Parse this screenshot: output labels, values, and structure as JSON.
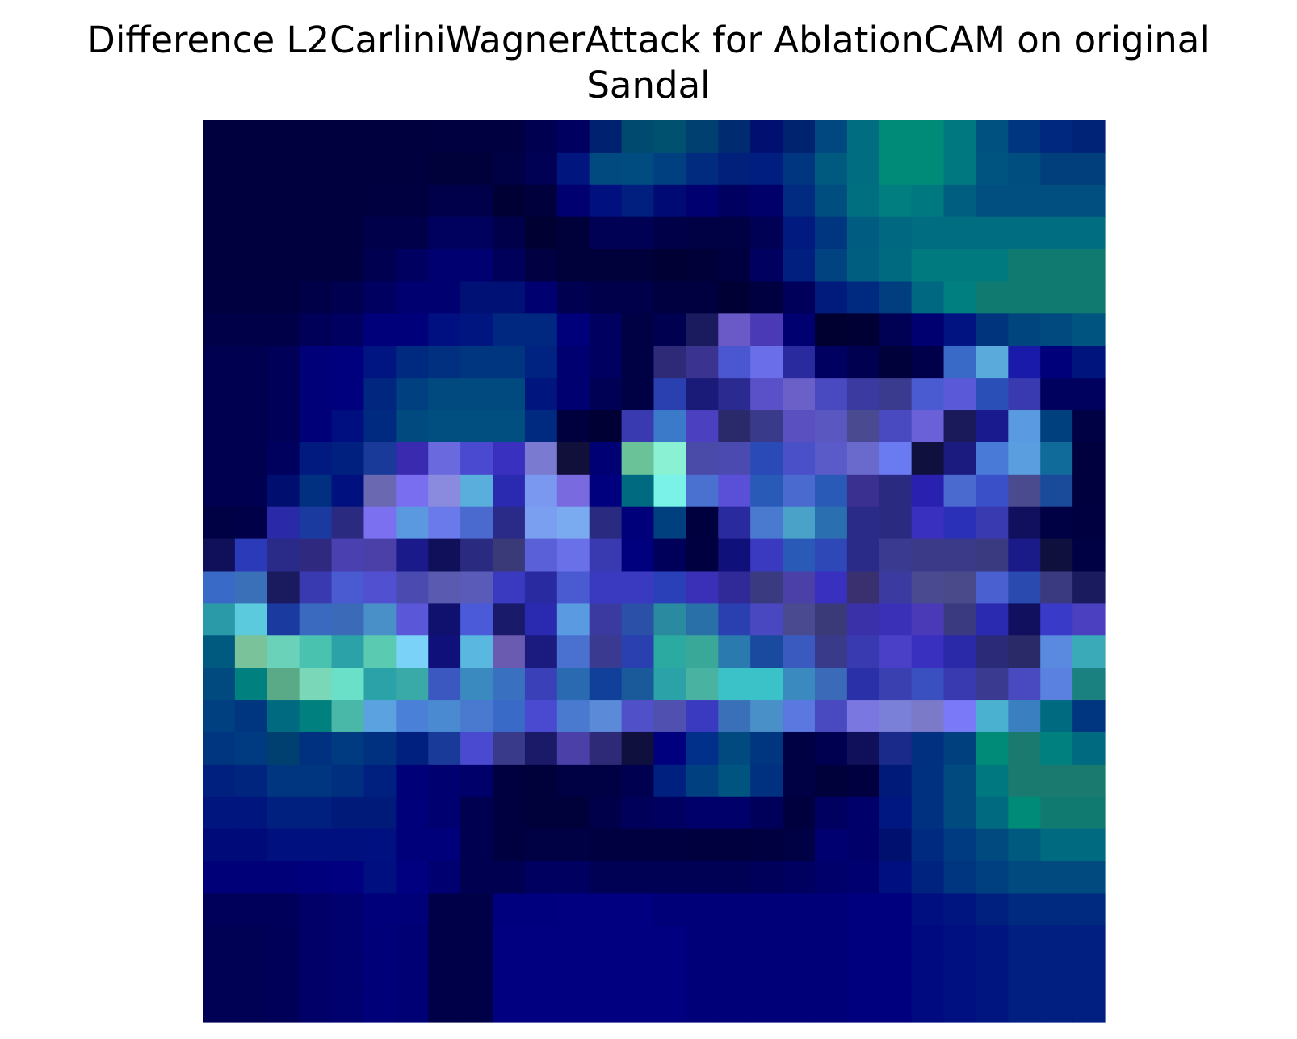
{
  "chart_data": {
    "type": "heatmap",
    "title_line1": "Difference L2CarliniWagnerAttack for AblationCAM on original",
    "title_line2": "Sandal",
    "rows": 28,
    "cols": 28,
    "colormap": "winter-ocean-blend",
    "axes_visible": false,
    "pixels": [
      [
        "#00003f",
        "#00003f",
        "#00003f",
        "#00003f",
        "#00003f",
        "#00003f",
        "#00003f",
        "#000040",
        "#000040",
        "#000040",
        "#000050",
        "#000060",
        "#002070",
        "#004a70",
        "#005070",
        "#004070",
        "#002b70",
        "#000f70",
        "#002370",
        "#00487f",
        "#006e80",
        "#008a78",
        "#008a78",
        "#007880",
        "#005080",
        "#003580",
        "#00287e",
        "#002377"
      ],
      [
        "#00003f",
        "#00003f",
        "#00003f",
        "#00003f",
        "#00003f",
        "#00003f",
        "#00003f",
        "#00003a",
        "#00003b",
        "#000045",
        "#000055",
        "#00157e",
        "#004a80",
        "#004c80",
        "#004080",
        "#002b7e",
        "#00207b",
        "#001d80",
        "#003580",
        "#005a80",
        "#006e80",
        "#008a78",
        "#008a78",
        "#007880",
        "#005580",
        "#004d80",
        "#003f7b",
        "#003f7b"
      ],
      [
        "#00003f",
        "#00003f",
        "#00003f",
        "#00003f",
        "#00003f",
        "#000040",
        "#000040",
        "#00004a",
        "#00004a",
        "#000035",
        "#00003d",
        "#000070",
        "#00107f",
        "#001f7f",
        "#000a75",
        "#000070",
        "#000060",
        "#00006a",
        "#002b80",
        "#004d80",
        "#006f80",
        "#007e80",
        "#007880",
        "#005f80",
        "#004f80",
        "#004f80",
        "#004f80",
        "#004f80"
      ],
      [
        "#00003f",
        "#00003f",
        "#00003f",
        "#00003f",
        "#00003f",
        "#00004a",
        "#00004a",
        "#00005f",
        "#00005f",
        "#00004a",
        "#000033",
        "#00003b",
        "#000055",
        "#000055",
        "#000048",
        "#000045",
        "#000045",
        "#000055",
        "#001a80",
        "#003580",
        "#005c80",
        "#006880",
        "#006e80",
        "#006e80",
        "#006e80",
        "#006e80",
        "#006e80",
        "#006e80"
      ],
      [
        "#00003f",
        "#00003f",
        "#00003f",
        "#00003f",
        "#00003f",
        "#000050",
        "#000060",
        "#000070",
        "#000070",
        "#00005a",
        "#000042",
        "#00003a",
        "#00003a",
        "#00003a",
        "#000035",
        "#000038",
        "#000040",
        "#000060",
        "#001f7f",
        "#004380",
        "#005f80",
        "#006a80",
        "#007a7f",
        "#007a7f",
        "#007a7f",
        "#107a70",
        "#107a70",
        "#107a70"
      ],
      [
        "#000040",
        "#000040",
        "#000040",
        "#000048",
        "#000050",
        "#000060",
        "#000070",
        "#000070",
        "#001176",
        "#001176",
        "#000070",
        "#000050",
        "#00004a",
        "#00004a",
        "#000040",
        "#000040",
        "#000035",
        "#000040",
        "#00005a",
        "#001b7b",
        "#002a80",
        "#003e80",
        "#006880",
        "#007f80",
        "#107a70",
        "#107a70",
        "#107a70",
        "#107a70"
      ],
      [
        "#000048",
        "#000048",
        "#000048",
        "#000058",
        "#000060",
        "#00007a",
        "#00007a",
        "#001080",
        "#001580",
        "#002880",
        "#002880",
        "#00007a",
        "#000060",
        "#000045",
        "#000050",
        "#1a1a5e",
        "#6a5ac8",
        "#4a3ab5",
        "#000070",
        "#000030",
        "#000035",
        "#000055",
        "#000070",
        "#001380",
        "#00357e",
        "#00457e",
        "#004a7f",
        "#005580"
      ],
      [
        "#000050",
        "#000050",
        "#000058",
        "#000078",
        "#00007f",
        "#001582",
        "#002a80",
        "#00307f",
        "#003580",
        "#003580",
        "#002280",
        "#000070",
        "#000060",
        "#000045",
        "#2f2a78",
        "#3a3490",
        "#4a57d0",
        "#6a6ee8",
        "#2a2a9f",
        "#000060",
        "#000050",
        "#00003a",
        "#00004a",
        "#3a6ac8",
        "#5aaadc",
        "#1a1aaa",
        "#00007a",
        "#00147e"
      ],
      [
        "#000050",
        "#000050",
        "#000058",
        "#000078",
        "#00007f",
        "#00267f",
        "#004080",
        "#004a80",
        "#004a80",
        "#004a80",
        "#00157e",
        "#000070",
        "#000055",
        "#000045",
        "#2a40b0",
        "#1a1a78",
        "#2a2a90",
        "#5a50c8",
        "#6a60c8",
        "#4a4ac0",
        "#3a3aa0",
        "#3a3a8f",
        "#4a5ad0",
        "#5a5ad8",
        "#2a50b8",
        "#3a3ab0",
        "#00005f",
        "#00005f"
      ],
      [
        "#000050",
        "#000050",
        "#000058",
        "#000078",
        "#000f7f",
        "#002a80",
        "#004a80",
        "#004f80",
        "#004f80",
        "#004f80",
        "#002a80",
        "#00003f",
        "#000035",
        "#3a3ab0",
        "#3a7ac8",
        "#4a40c0",
        "#2a2a6a",
        "#3a3a8a",
        "#5a50c0",
        "#5a58c0",
        "#4a4a90",
        "#4a4ac0",
        "#6a60d8",
        "#1a1a5a",
        "#1a1a8f",
        "#5a9ae0",
        "#00407f",
        "#000045"
      ],
      [
        "#000050",
        "#000050",
        "#00005f",
        "#001a80",
        "#00207f",
        "#1a3a9a",
        "#3a2ab0",
        "#6a6ade",
        "#4a4ad0",
        "#3a30c0",
        "#7a7ad0",
        "#10103a",
        "#000075",
        "#6ac298",
        "#8af2d2",
        "#4a4aa8",
        "#4a4ab0",
        "#2a4ab8",
        "#4a50c8",
        "#5a5ac8",
        "#6a6acc",
        "#6a7af0",
        "#10103f",
        "#1a1a7f",
        "#4a7ad8",
        "#5a9ee0",
        "#106a9a",
        "#00003f"
      ],
      [
        "#000050",
        "#000050",
        "#000f6f",
        "#00307f",
        "#00107f",
        "#6a68b0",
        "#7a6ef0",
        "#8a8ade",
        "#5aaedc",
        "#2a2ab0",
        "#7a98f0",
        "#7a6ae0",
        "#00007f",
        "#006a80",
        "#7af2e8",
        "#4a70d0",
        "#5a50d8",
        "#2a5ab8",
        "#4a6ad0",
        "#2a5ab8",
        "#3a3090",
        "#2a2a80",
        "#2a20b0",
        "#4a6ad0",
        "#3a50c8",
        "#4a4a8f",
        "#1a4a9a",
        "#00003f"
      ],
      [
        "#000045",
        "#000048",
        "#2a2aa8",
        "#1a3aa0",
        "#2a2a80",
        "#7a70f0",
        "#5a98e0",
        "#6a7aea",
        "#4a6ad0",
        "#2a2a88",
        "#7a9ef0",
        "#7aaaf0",
        "#2a2a80",
        "#00007a",
        "#00407f",
        "#00003f",
        "#2a2a9f",
        "#4a7ad0",
        "#4aa2c8",
        "#2a70b0",
        "#2a2a88",
        "#2a2a80",
        "#3a30c0",
        "#2a30b8",
        "#3a3ab0",
        "#10105f",
        "#000045",
        "#000040"
      ],
      [
        "#10105a",
        "#2a3ab8",
        "#2a2a88",
        "#2f2a80",
        "#4a40b0",
        "#4a40a8",
        "#1a1a8a",
        "#10105a",
        "#2a2a80",
        "#3a3a78",
        "#5a60d8",
        "#6a70e8",
        "#3a3ab0",
        "#00007f",
        "#00005a",
        "#000040",
        "#10107a",
        "#3a3ac0",
        "#2a5ab8",
        "#2f48b8",
        "#2a2a88",
        "#3a3a90",
        "#3a3a88",
        "#3a3a88",
        "#3a3a80",
        "#1a1a88",
        "#10103f",
        "#000045"
      ],
      [
        "#3a6ac8",
        "#3a70b8",
        "#1a1a5f",
        "#3a3ab0",
        "#4a5ad0",
        "#5050d0",
        "#4a4ab0",
        "#5a5ab0",
        "#5a5ab8",
        "#3a3ac0",
        "#2a2aa0",
        "#4a5ad0",
        "#3a3ac0",
        "#3a3ac0",
        "#2a40b8",
        "#3a30b8",
        "#2f2a98",
        "#3a3a80",
        "#4a40a8",
        "#3a30c0",
        "#3a3070",
        "#3a3aa0",
        "#4a4a90",
        "#4a4a8a",
        "#4a60d0",
        "#2a4ab0",
        "#3a3a80",
        "#1a1a5f"
      ],
      [
        "#2a9aa8",
        "#5acadc",
        "#1a3aa0",
        "#3a6ac0",
        "#3a6ab8",
        "#4a90c8",
        "#5a58d8",
        "#10106f",
        "#4a5ad8",
        "#1a1a6a",
        "#2a2ab0",
        "#5a9ae0",
        "#3a3aa0",
        "#2a50a8",
        "#2a8aa0",
        "#2a70a8",
        "#2a40b0",
        "#4a48c0",
        "#4a4a90",
        "#3a3a78",
        "#3a30a8",
        "#3a30b8",
        "#4a3ab8",
        "#3a3a80",
        "#2a2ab0",
        "#10105f",
        "#3a3ac8",
        "#4a40c0"
      ],
      [
        "#005a80",
        "#7ac29a",
        "#6ad2b8",
        "#4ac2b0",
        "#2aa2a8",
        "#5acab0",
        "#7ad2f8",
        "#10107a",
        "#5ab8e0",
        "#6a5ab0",
        "#1a1a7f",
        "#4a70d0",
        "#3a3a90",
        "#2a40b0",
        "#2aaaa0",
        "#3aa898",
        "#2a7ab0",
        "#1a4a9f",
        "#3a5ac0",
        "#3a3a8a",
        "#3a3ab0",
        "#4a40c8",
        "#3a30c0",
        "#2a2aa8",
        "#2a2a78",
        "#2a2a68",
        "#5a8ae0",
        "#3aaab8"
      ],
      [
        "#004a80",
        "#00807f",
        "#5aaa88",
        "#7ad8b8",
        "#6ae0c8",
        "#2aa2a8",
        "#3aaaa8",
        "#3a58c0",
        "#3a8ac0",
        "#3a70c0",
        "#3a40b8",
        "#2a6ab0",
        "#10409a",
        "#1a5a9a",
        "#2aa2a8",
        "#4ab2a0",
        "#3ac2c8",
        "#3ac2c8",
        "#3a8ac0",
        "#3a6ab8",
        "#2a30a8",
        "#3a40b0",
        "#3a50c0",
        "#3a3ab0",
        "#3a3a90",
        "#4a4ac0",
        "#5a80e0",
        "#1a8080"
      ],
      [
        "#004080",
        "#003580",
        "#006a80",
        "#00807f",
        "#4ab8a8",
        "#5aa2e0",
        "#4a80d8",
        "#4a8ad0",
        "#4a7ad0",
        "#3a6ac8",
        "#4a4ad0",
        "#4a7ad0",
        "#5a8ad8",
        "#5050c8",
        "#5050b0",
        "#3a3ac0",
        "#3a70b8",
        "#4a90c8",
        "#5a78e0",
        "#4a4ac0",
        "#7a78e0",
        "#7a80d8",
        "#7a7ac8",
        "#7a7af8",
        "#4ab2d0",
        "#3a80c0",
        "#006a80",
        "#003580"
      ],
      [
        "#003580",
        "#003a80",
        "#004070",
        "#003080",
        "#003a80",
        "#003080",
        "#00207f",
        "#1a3a9a",
        "#4a4ad0",
        "#3a3a8a",
        "#1a1a68",
        "#4a40a8",
        "#2f2a78",
        "#10103f",
        "#00007f",
        "#00308a",
        "#004a80",
        "#003580",
        "#000045",
        "#000050",
        "#10105a",
        "#1a2a8a",
        "#00307f",
        "#00407f",
        "#008a78",
        "#1a7a70",
        "#00807f",
        "#006a80"
      ],
      [
        "#00207f",
        "#00257f",
        "#003580",
        "#003580",
        "#002f80",
        "#00207f",
        "#000078",
        "#000070",
        "#00006a",
        "#000040",
        "#00003a",
        "#000045",
        "#000045",
        "#000050",
        "#00207f",
        "#004080",
        "#005580",
        "#003080",
        "#000045",
        "#00003a",
        "#000040",
        "#001a7a",
        "#003080",
        "#004a80",
        "#007880",
        "#1a7a70",
        "#1a7a70",
        "#1a7a70"
      ],
      [
        "#00157e",
        "#00157e",
        "#00207f",
        "#00207f",
        "#001a7a",
        "#001a7a",
        "#00007a",
        "#000070",
        "#000050",
        "#000040",
        "#00003a",
        "#00003a",
        "#00004a",
        "#00005a",
        "#000060",
        "#00006a",
        "#00006a",
        "#00005a",
        "#00003f",
        "#000060",
        "#00006a",
        "#001680",
        "#003080",
        "#004a80",
        "#006a80",
        "#008a78",
        "#107a70",
        "#107a70"
      ],
      [
        "#000a78",
        "#000a78",
        "#00107f",
        "#00107f",
        "#00107f",
        "#001080",
        "#00007a",
        "#00007a",
        "#000050",
        "#000040",
        "#000045",
        "#000045",
        "#000040",
        "#000040",
        "#000040",
        "#00003f",
        "#00003f",
        "#000040",
        "#000045",
        "#000070",
        "#00006a",
        "#00106f",
        "#002a80",
        "#003a80",
        "#004a80",
        "#005a80",
        "#006a80",
        "#006a80"
      ],
      [
        "#000078",
        "#000078",
        "#000078",
        "#00007c",
        "#000080",
        "#000f80",
        "#000080",
        "#000070",
        "#000050",
        "#000050",
        "#000060",
        "#000060",
        "#000055",
        "#000055",
        "#000055",
        "#000055",
        "#000055",
        "#00005a",
        "#000060",
        "#00006a",
        "#000070",
        "#000f80",
        "#002380",
        "#003580",
        "#004080",
        "#004a80",
        "#004a80",
        "#004a80"
      ],
      [
        "#00005a",
        "#00005a",
        "#00005a",
        "#000068",
        "#00006f",
        "#00007a",
        "#000078",
        "#000048",
        "#000048",
        "#00007f",
        "#00007f",
        "#000080",
        "#000080",
        "#000080",
        "#000078",
        "#000078",
        "#000078",
        "#000078",
        "#000078",
        "#000078",
        "#00007f",
        "#00007f",
        "#000f80",
        "#001580",
        "#002080",
        "#002a80",
        "#002a80",
        "#002a80"
      ],
      [
        "#000055",
        "#000055",
        "#000058",
        "#000068",
        "#00006f",
        "#000078",
        "#000075",
        "#000048",
        "#000048",
        "#000080",
        "#000080",
        "#000080",
        "#000080",
        "#000080",
        "#000080",
        "#000078",
        "#000078",
        "#000078",
        "#000078",
        "#000078",
        "#00007f",
        "#00007f",
        "#000a80",
        "#001080",
        "#001580",
        "#001f80",
        "#001f80",
        "#001f80"
      ],
      [
        "#000055",
        "#000055",
        "#000058",
        "#000068",
        "#00006f",
        "#000078",
        "#000075",
        "#000048",
        "#000048",
        "#000080",
        "#000080",
        "#000080",
        "#000080",
        "#000080",
        "#000080",
        "#000078",
        "#000078",
        "#000078",
        "#000078",
        "#000078",
        "#00007f",
        "#00007f",
        "#000a80",
        "#001080",
        "#001580",
        "#001f80",
        "#001f80",
        "#001f80"
      ],
      [
        "#000055",
        "#000055",
        "#000058",
        "#000068",
        "#00006f",
        "#000078",
        "#000075",
        "#000048",
        "#000048",
        "#000080",
        "#000080",
        "#000080",
        "#000080",
        "#000080",
        "#000080",
        "#000078",
        "#000078",
        "#000078",
        "#000078",
        "#000078",
        "#00007f",
        "#00007f",
        "#000a80",
        "#001080",
        "#001580",
        "#001f80",
        "#001f80",
        "#001f80"
      ]
    ]
  }
}
